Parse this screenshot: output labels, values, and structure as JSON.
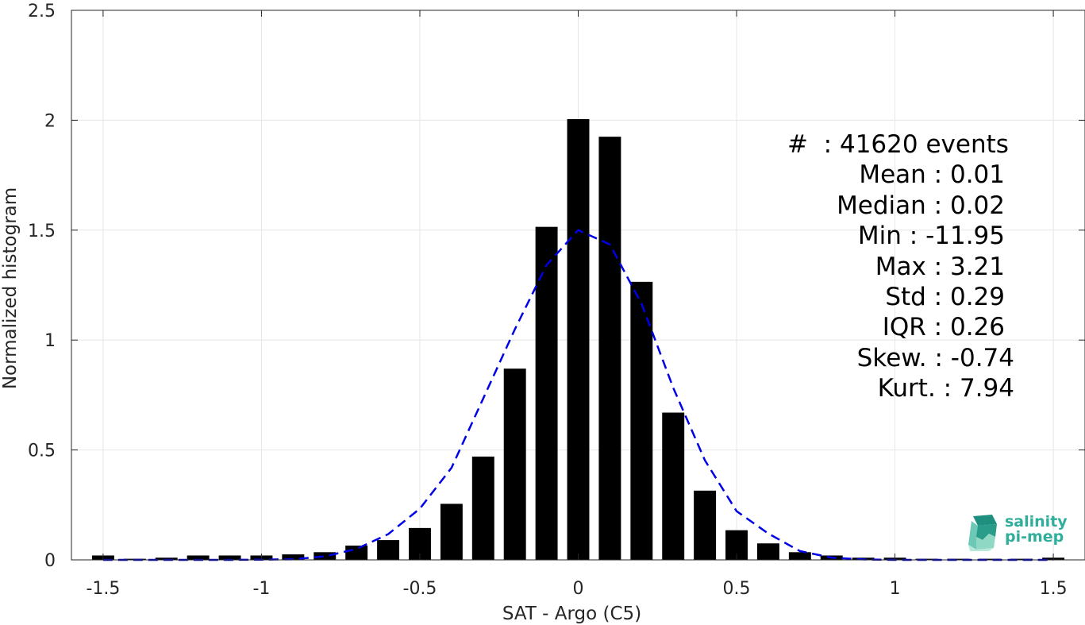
{
  "chart_data": {
    "type": "bar",
    "xlabel": "SAT - Argo (C5)",
    "ylabel": "Normalized histogram",
    "xlim": [
      -1.6,
      1.6
    ],
    "ylim": [
      0,
      2.5
    ],
    "grid": true,
    "xticks": [
      -1.5,
      -1,
      -0.5,
      0,
      0.5,
      1,
      1.5
    ],
    "xtick_labels": [
      "-1.5",
      "-1",
      "-0.5",
      "0",
      "0.5",
      "1",
      "1.5"
    ],
    "yticks": [
      0,
      0.5,
      1,
      1.5,
      2,
      2.5
    ],
    "ytick_labels": [
      "0",
      "0.5",
      "1",
      "1.5",
      "2",
      "2.5"
    ],
    "bar_width": 0.07,
    "bars": {
      "x": [
        -1.5,
        -1.4,
        -1.3,
        -1.2,
        -1.1,
        -1.0,
        -0.9,
        -0.8,
        -0.7,
        -0.6,
        -0.5,
        -0.4,
        -0.3,
        -0.2,
        -0.1,
        0.0,
        0.1,
        0.2,
        0.3,
        0.4,
        0.5,
        0.6,
        0.7,
        0.8,
        0.9,
        1.0,
        1.1,
        1.2,
        1.3,
        1.4,
        1.5
      ],
      "values": [
        0.02,
        0.005,
        0.01,
        0.02,
        0.02,
        0.02,
        0.025,
        0.035,
        0.065,
        0.09,
        0.145,
        0.255,
        0.47,
        0.87,
        1.515,
        2.005,
        1.925,
        1.265,
        0.67,
        0.315,
        0.135,
        0.075,
        0.035,
        0.02,
        0.01,
        0.01,
        0.005,
        0.005,
        0.005,
        0.005,
        0.01
      ],
      "color": "#000000"
    },
    "fit_curve": {
      "style": "dashed",
      "color": "#0000e6",
      "x": [
        -1.5,
        -1.4,
        -1.3,
        -1.2,
        -1.1,
        -1.0,
        -0.9,
        -0.8,
        -0.7,
        -0.6,
        -0.5,
        -0.4,
        -0.3,
        -0.2,
        -0.1,
        0.0,
        0.1,
        0.2,
        0.3,
        0.4,
        0.5,
        0.6,
        0.7,
        0.8,
        0.9,
        1.0,
        1.1,
        1.2,
        1.3,
        1.4,
        1.5
      ],
      "y": [
        0,
        0,
        0,
        0,
        0,
        0.001,
        0.003,
        0.016,
        0.05,
        0.117,
        0.233,
        0.419,
        0.734,
        1.049,
        1.341,
        1.5,
        1.435,
        1.165,
        0.783,
        0.453,
        0.222,
        0.12,
        0.04,
        0.01,
        0.002,
        0,
        0,
        0,
        0,
        0,
        0
      ]
    },
    "annotations": [
      "#  : 41620 events",
      "Mean : 0.01",
      "Median : 0.02",
      "Min : -11.95",
      "Max : 3.21",
      "Std : 0.29",
      "IQR : 0.26",
      "Skew. : -0.74",
      "Kurt. : 7.94"
    ]
  },
  "logo": {
    "line1": "salinity",
    "line2": "pi-mep",
    "color": "#2fae9c"
  }
}
